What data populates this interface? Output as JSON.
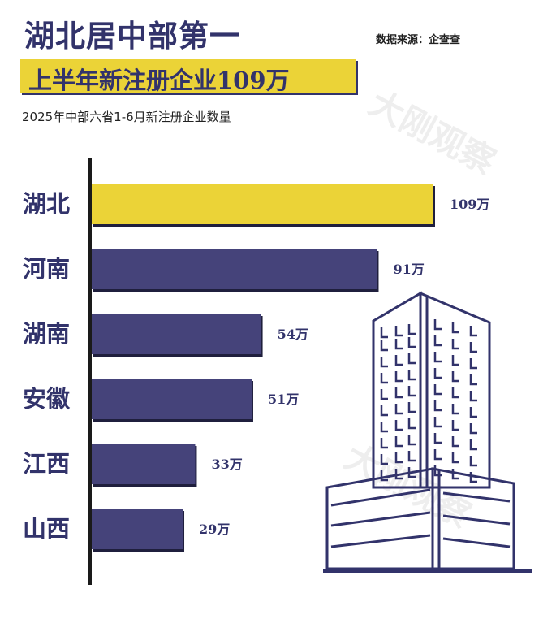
{
  "header": {
    "title": "湖北居中部第一",
    "source": "数据来源：企查查",
    "banner": "上半年新注册企业109万",
    "subtitle": "2025年中部六省1-6月新注册企业数量"
  },
  "watermark": "大刚观察",
  "colors": {
    "highlight": "#ebd337",
    "bar": "#45437a",
    "text": "#32336b"
  },
  "chart_data": {
    "type": "bar",
    "orientation": "horizontal",
    "categories": [
      "湖北",
      "河南",
      "湖南",
      "安徽",
      "江西",
      "山西"
    ],
    "values": [
      109,
      91,
      54,
      51,
      33,
      29
    ],
    "value_labels": [
      "109万",
      "91万",
      "54万",
      "51万",
      "33万",
      "29万"
    ],
    "unit": "万",
    "highlight_index": 0,
    "xlim": [
      0,
      109
    ],
    "grid": false,
    "legend": "none"
  }
}
